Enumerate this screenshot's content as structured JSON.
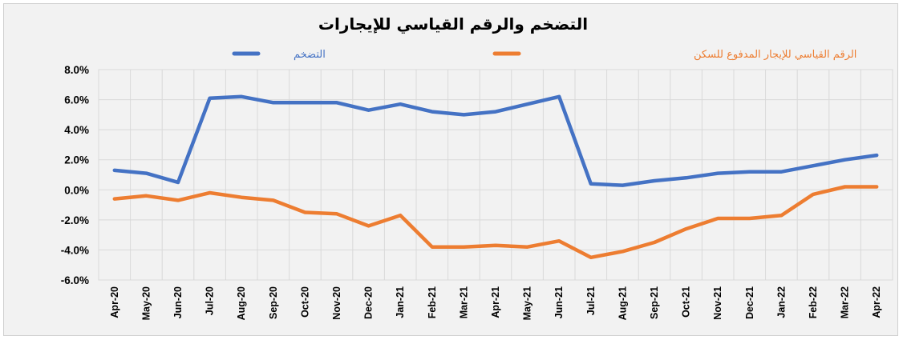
{
  "chart_data": {
    "type": "line",
    "title": "التضخم والرقم القياسي للإيجارات",
    "categories": [
      "Apr-20",
      "May-20",
      "Jun-20",
      "Jul-20",
      "Aug-20",
      "Sep-20",
      "Oct-20",
      "Nov-20",
      "Dec-20",
      "Jan-21",
      "Feb-21",
      "Mar-21",
      "Apr-21",
      "May-21",
      "Jun-21",
      "Jul-21",
      "Aug-21",
      "Sep-21",
      "Oct-21",
      "Nov-21",
      "Dec-21",
      "Jan-22",
      "Feb-22",
      "Mar-22",
      "Apr-22"
    ],
    "series": [
      {
        "name": "التضخم",
        "color": "#4472c4",
        "values": [
          1.3,
          1.1,
          0.5,
          6.1,
          6.2,
          5.8,
          5.8,
          5.8,
          5.3,
          5.7,
          5.2,
          5.0,
          5.2,
          5.7,
          6.2,
          0.4,
          0.3,
          0.6,
          0.8,
          1.1,
          1.2,
          1.2,
          1.6,
          2.0,
          2.3
        ]
      },
      {
        "name": "الرقم القياسي للإيجار المدفوع للسكن",
        "color": "#ed7d31",
        "values": [
          -0.6,
          -0.4,
          -0.7,
          -0.2,
          -0.5,
          -0.7,
          -1.5,
          -1.6,
          -2.4,
          -1.7,
          -3.8,
          -3.8,
          -3.7,
          -3.8,
          -3.4,
          -4.5,
          -4.1,
          -3.5,
          -2.6,
          -1.9,
          -1.9,
          -1.7,
          -0.3,
          0.2,
          0.2
        ]
      }
    ],
    "ylim": [
      -6,
      8
    ],
    "yticks": [
      "-6.0%",
      "-4.0%",
      "-2.0%",
      "0.0%",
      "2.0%",
      "4.0%",
      "6.0%",
      "8.0%"
    ],
    "ytick_values": [
      -6,
      -4,
      -2,
      0,
      2,
      4,
      6,
      8
    ],
    "grid": "vertical and horizontal",
    "legend": "top"
  }
}
